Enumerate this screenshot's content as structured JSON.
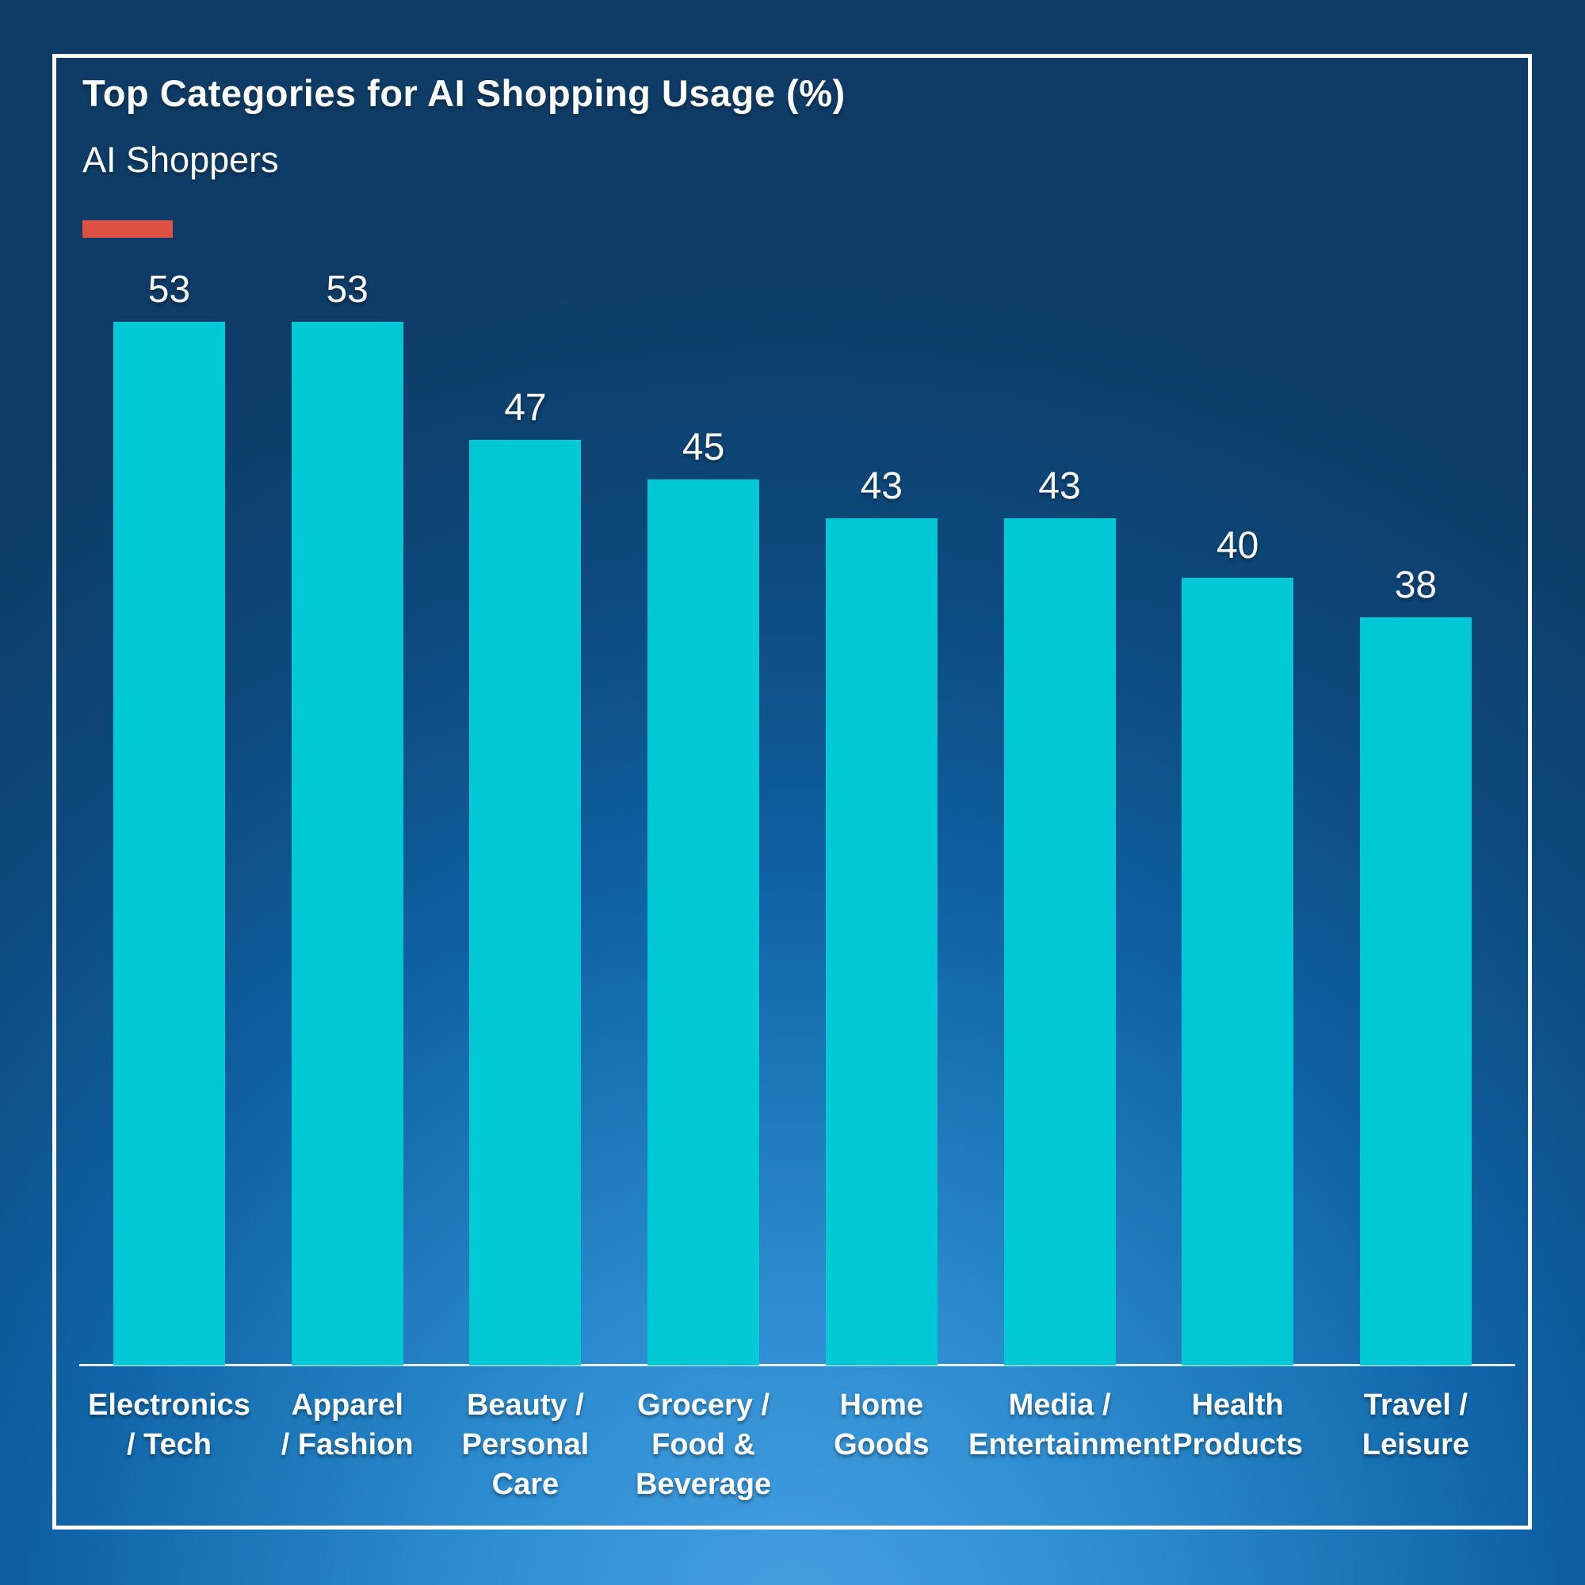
{
  "header": {
    "title": "Top Categories for AI Shopping Usage (%)",
    "subtitle": "AI Shoppers",
    "accent_color": "#dc5142"
  },
  "chart_data": {
    "type": "bar",
    "title": "Top Categories for AI Shopping Usage (%)",
    "series_name": "AI Shoppers",
    "categories": [
      "Electronics / Tech",
      "Apparel / Fashion",
      "Beauty / Personal Care",
      "Grocery / Food & Beverage",
      "Home Goods",
      "Media / Entertainment",
      "Health Products",
      "Travel / Leisure"
    ],
    "category_lines": [
      [
        "Electronics",
        "/ Tech"
      ],
      [
        "Apparel",
        "/ Fashion"
      ],
      [
        "Beauty /",
        "Personal",
        "Care"
      ],
      [
        "Grocery /",
        "Food &",
        "Beverage"
      ],
      [
        "Home",
        "Goods"
      ],
      [
        "Media /",
        "Entertainment"
      ],
      [
        "Health",
        "Products"
      ],
      [
        "Travel /",
        "Leisure"
      ]
    ],
    "values": [
      53,
      53,
      47,
      45,
      43,
      43,
      40,
      38
    ],
    "data_labels": [
      53,
      53,
      47,
      45,
      43,
      43,
      40,
      38
    ],
    "ylim": [
      0,
      60
    ],
    "grid": false,
    "legend": "none",
    "bar_color": "#00c8d4",
    "value_label_color": "#ffffff",
    "category_label_color": "#ffffff",
    "axis_line_color": "rgba(255,255,255,0.9)",
    "background_dark": "#0e3c66",
    "background_glow": "#46a1e2"
  }
}
